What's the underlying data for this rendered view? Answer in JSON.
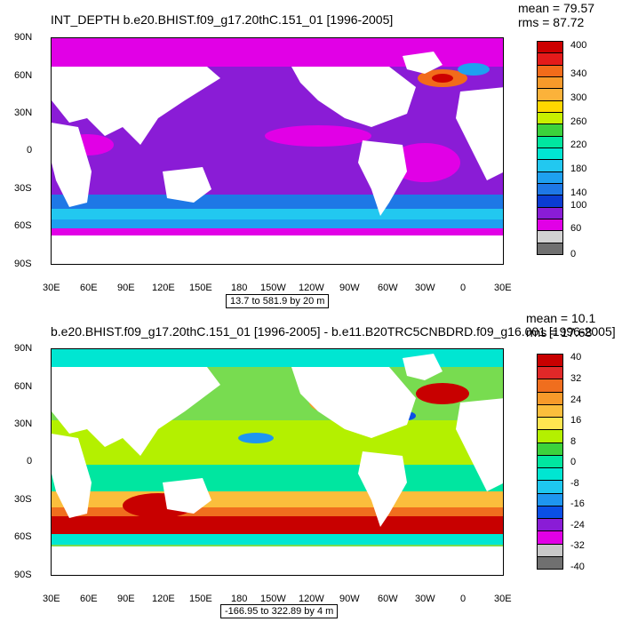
{
  "panels": [
    {
      "title": "INT_DEPTH b.e20.BHIST.f09_g17.20thC.151_01 [1996-2005]",
      "stats": [
        "mean = 79.57",
        "rms = 87.72"
      ],
      "subtitle": "13.7 to 581.9 by 20 m",
      "lat_labels": [
        "90N",
        "60N",
        "30N",
        "0",
        "30S",
        "60S",
        "90S"
      ],
      "lon_labels": [
        "30E",
        "60E",
        "90E",
        "120E",
        "150E",
        "180",
        "150W",
        "120W",
        "90W",
        "60W",
        "30W",
        "0",
        "30E"
      ],
      "colorbar_labels": [
        "400",
        "340",
        "300",
        "260",
        "220",
        "180",
        "140",
        "100",
        "60",
        "0"
      ],
      "colorbar_colors": [
        "#cc0000",
        "#e41a1a",
        "#f26b1a",
        "#f79a2a",
        "#fbb23a",
        "#ffd700",
        "#c8f000",
        "#3cd23c",
        "#00e6a0",
        "#00e6d2",
        "#22c8f0",
        "#1ea0f0",
        "#1e78e6",
        "#0a3cd2",
        "#8a1cd6",
        "#e100e6",
        "#d2d2d2",
        "#707070"
      ],
      "field_colors": {
        "ocean": "#8a1cd6",
        "land": "#ffffff",
        "missing": "#c8c8c8"
      }
    },
    {
      "title": "b.e20.BHIST.f09_g17.20thC.151_01 [1996-2005] - b.e11.B20TRC5CNBDRD.f09_g16.001 [1996-2005]",
      "stats": [
        "mean = 10.1",
        "rms = 17.68"
      ],
      "subtitle": "-166.95 to 322.89 by 4 m",
      "lat_labels": [
        "90N",
        "60N",
        "30N",
        "0",
        "30S",
        "60S",
        "90S"
      ],
      "lon_labels": [
        "30E",
        "60E",
        "90E",
        "120E",
        "150E",
        "180",
        "150W",
        "120W",
        "90W",
        "60W",
        "30W",
        "0",
        "30E"
      ],
      "colorbar_labels": [
        "40",
        "32",
        "24",
        "16",
        "8",
        "0",
        "-8",
        "-16",
        "-24",
        "-32",
        "-40"
      ],
      "colorbar_colors": [
        "#c80000",
        "#e12828",
        "#f06e1e",
        "#f79a2a",
        "#fbbe3c",
        "#ffe650",
        "#b4f000",
        "#3cd23c",
        "#00e6a0",
        "#00e6d2",
        "#1ec8f0",
        "#1e96f0",
        "#0a50e6",
        "#8a1cd6",
        "#e100e6",
        "#c8c8c8",
        "#707070"
      ],
      "field_colors": {
        "ocean": "#78dc50",
        "land": "#ffffff",
        "missing": "#c8c8c8"
      }
    }
  ]
}
